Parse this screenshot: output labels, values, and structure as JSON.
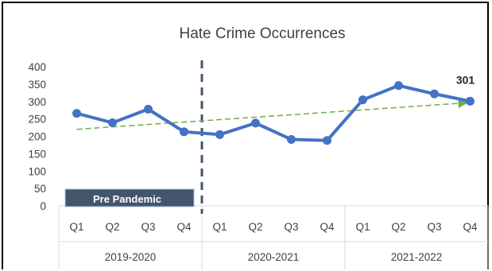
{
  "chart_data": {
    "type": "line",
    "title": "Hate Crime Occurrences",
    "xlabel": "",
    "ylabel": "",
    "categories": [
      "Q1",
      "Q2",
      "Q3",
      "Q4",
      "Q1",
      "Q2",
      "Q3",
      "Q4",
      "Q1",
      "Q2",
      "Q3",
      "Q4"
    ],
    "groups": [
      {
        "label": "2019-2020",
        "span": 4
      },
      {
        "label": "2020-2021",
        "span": 4
      },
      {
        "label": "2021-2022",
        "span": 4
      }
    ],
    "series": [
      {
        "values": [
          266,
          239,
          278,
          213,
          205,
          238,
          191,
          188,
          305,
          346,
          322,
          301
        ],
        "color": "#4472C4"
      }
    ],
    "trendline": {
      "start": 220,
      "end": 296,
      "color": "#70AD47"
    },
    "ylim": [
      0,
      400
    ],
    "yticks": [
      0,
      50,
      100,
      150,
      200,
      250,
      300,
      350,
      400
    ],
    "grid": false,
    "legend": "none",
    "annotations": [
      {
        "text": "301",
        "point_index": 11
      }
    ],
    "divider_after_index": 3,
    "badge": {
      "text": "Pre Pandemic",
      "color": "#44546A"
    }
  }
}
